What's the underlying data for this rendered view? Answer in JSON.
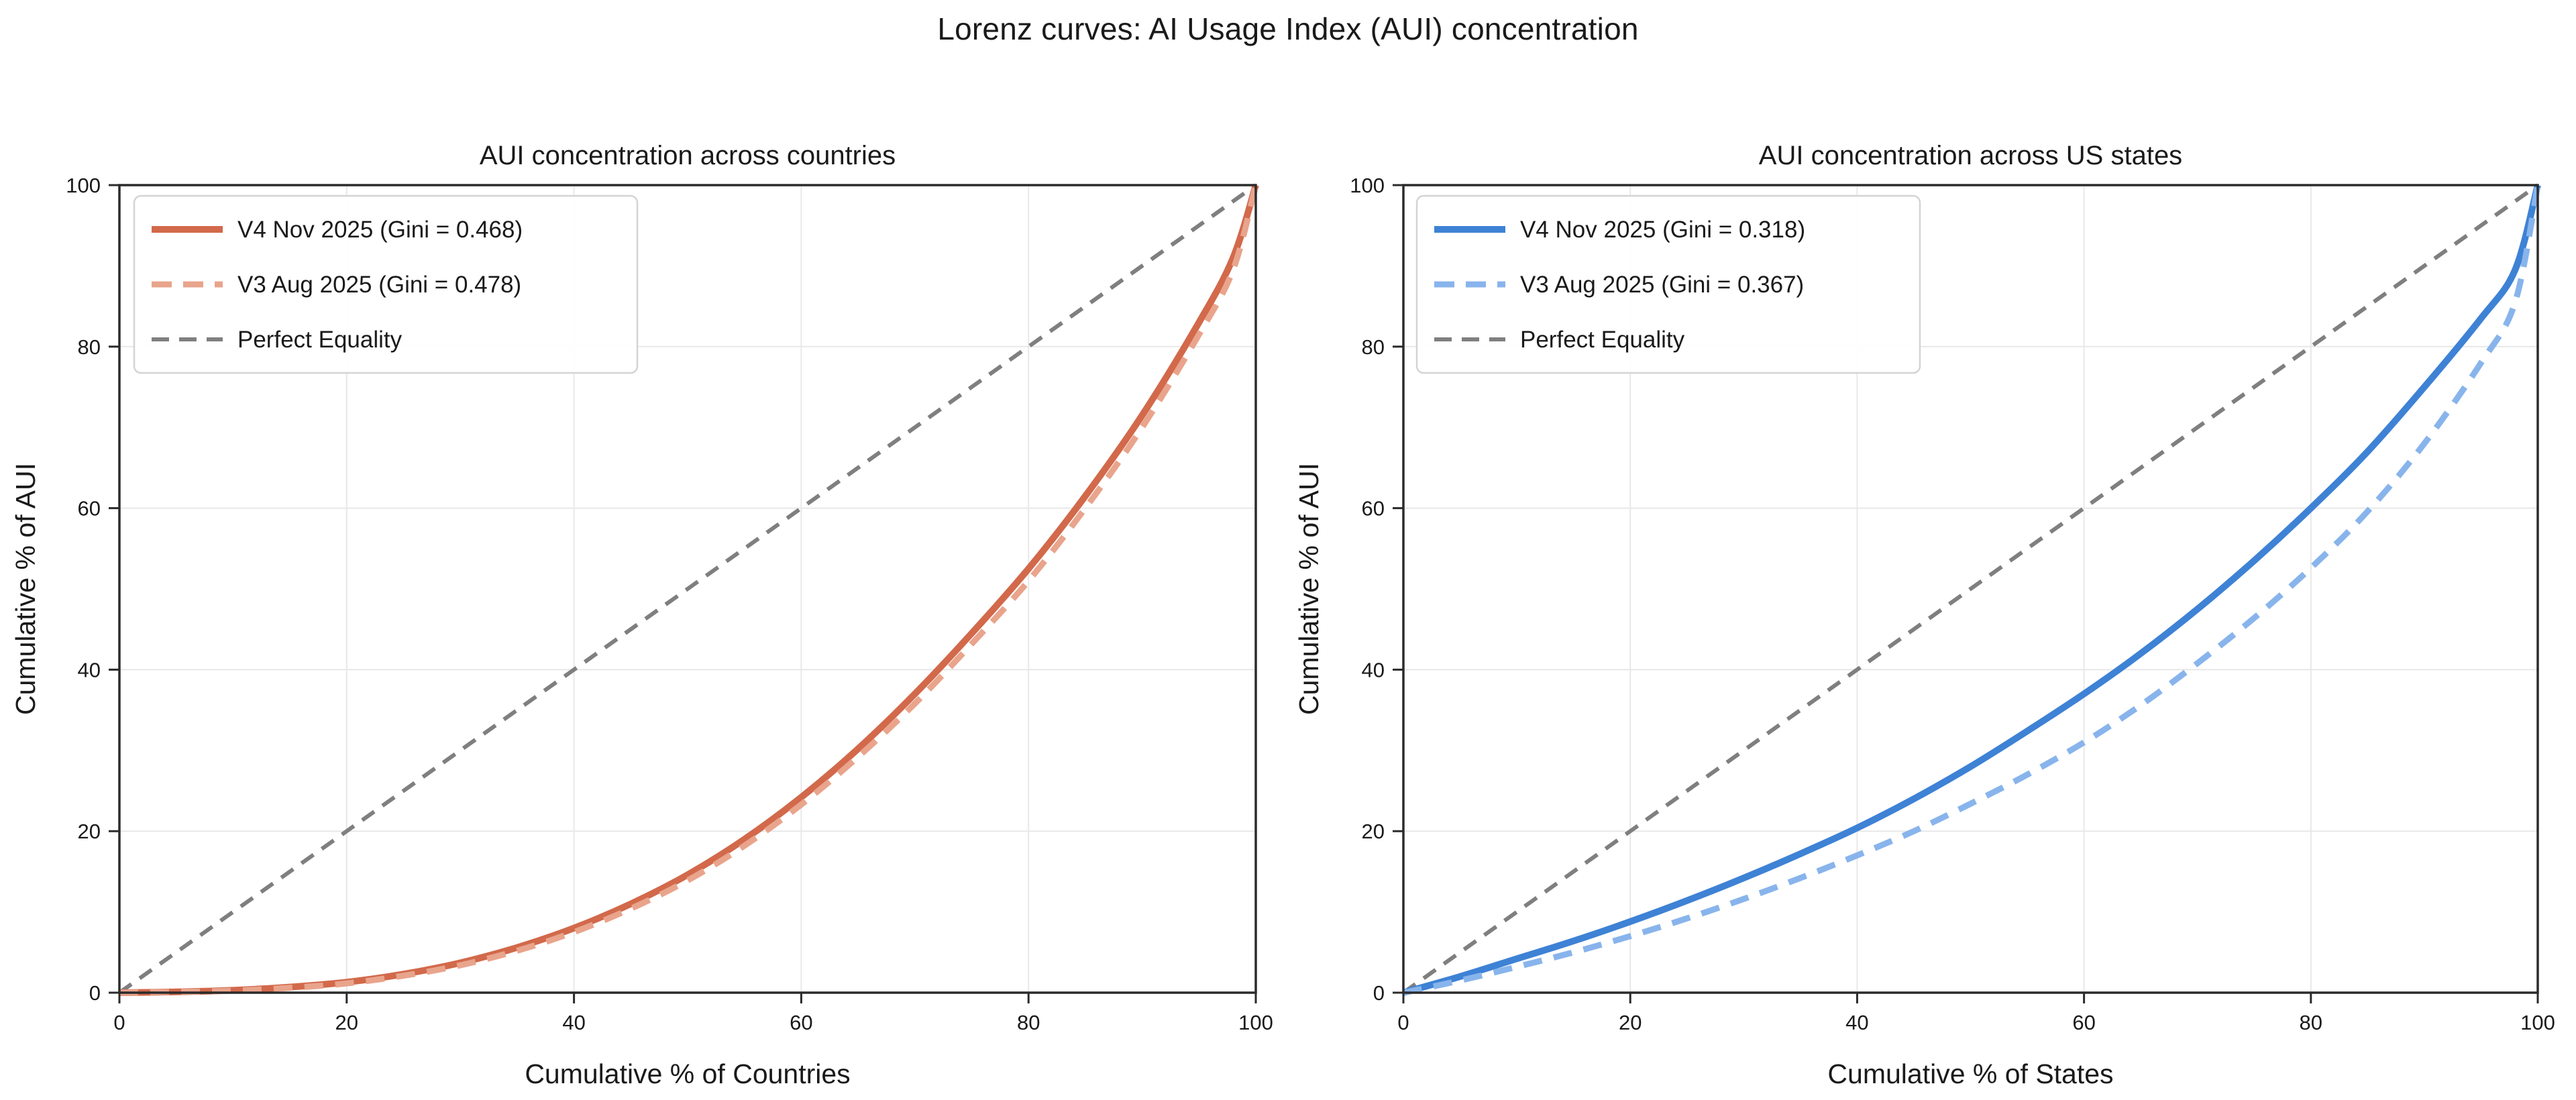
{
  "figure": {
    "title": "Lorenz curves: AI Usage Index (AUI) concentration",
    "background_color": "#ffffff",
    "text_color": "#1a1a1a",
    "spine_color": "#2b2b2b",
    "grid_color": "#e8e8e8",
    "legend_border_color": "#d4d4d4",
    "legend_background_color": "#ffffff"
  },
  "chart_data": [
    {
      "type": "line",
      "title": "AUI concentration across countries",
      "xlabel": "Cumulative % of Countries",
      "ylabel": "Cumulative % of AUI",
      "xlim": [
        0,
        100
      ],
      "ylim": [
        0,
        100
      ],
      "xticks": [
        0,
        20,
        40,
        60,
        80,
        100
      ],
      "yticks": [
        0,
        20,
        40,
        60,
        80,
        100
      ],
      "grid": true,
      "legend_position": "upper left",
      "series": [
        {
          "name": "V4 Nov 2025 (Gini = 0.468)",
          "gini": 0.468,
          "color": "#D2694B",
          "style": "solid",
          "points": [
            [
              0,
              0
            ],
            [
              5,
              0.1
            ],
            [
              10,
              0.3
            ],
            [
              15,
              0.7
            ],
            [
              20,
              1.3
            ],
            [
              25,
              2.3
            ],
            [
              30,
              3.7
            ],
            [
              35,
              5.6
            ],
            [
              40,
              8.0
            ],
            [
              45,
              11.0
            ],
            [
              50,
              14.6
            ],
            [
              55,
              19.0
            ],
            [
              60,
              24.2
            ],
            [
              65,
              30.2
            ],
            [
              70,
              37.0
            ],
            [
              75,
              44.5
            ],
            [
              80,
              52.5
            ],
            [
              85,
              61.5
            ],
            [
              90,
              71.5
            ],
            [
              95,
              83.0
            ],
            [
              98,
              91.0
            ],
            [
              100,
              100
            ]
          ]
        },
        {
          "name": "V3 Aug 2025 (Gini = 0.478)",
          "gini": 0.478,
          "color": "#E9A48C",
          "style": "dashed",
          "points": [
            [
              0,
              0
            ],
            [
              5,
              0.1
            ],
            [
              10,
              0.25
            ],
            [
              15,
              0.6
            ],
            [
              20,
              1.15
            ],
            [
              25,
              2.1
            ],
            [
              30,
              3.4
            ],
            [
              35,
              5.2
            ],
            [
              40,
              7.5
            ],
            [
              45,
              10.4
            ],
            [
              50,
              13.9
            ],
            [
              55,
              18.2
            ],
            [
              60,
              23.3
            ],
            [
              65,
              29.2
            ],
            [
              70,
              35.8
            ],
            [
              75,
              43.2
            ],
            [
              80,
              51.0
            ],
            [
              85,
              60.0
            ],
            [
              90,
              70.0
            ],
            [
              95,
              81.5
            ],
            [
              98,
              89.5
            ],
            [
              100,
              100
            ]
          ]
        },
        {
          "name": "Perfect Equality",
          "color": "#7f7f7f",
          "style": "dashed-reference",
          "points": [
            [
              0,
              0
            ],
            [
              100,
              100
            ]
          ]
        }
      ]
    },
    {
      "type": "line",
      "title": "AUI concentration across US states",
      "xlabel": "Cumulative % of States",
      "ylabel": "Cumulative % of AUI",
      "xlim": [
        0,
        100
      ],
      "ylim": [
        0,
        100
      ],
      "xticks": [
        0,
        20,
        40,
        60,
        80,
        100
      ],
      "yticks": [
        0,
        20,
        40,
        60,
        80,
        100
      ],
      "grid": true,
      "legend_position": "upper left",
      "series": [
        {
          "name": "V4 Nov 2025 (Gini = 0.318)",
          "gini": 0.318,
          "color": "#3E82D5",
          "style": "solid",
          "points": [
            [
              0,
              0
            ],
            [
              5,
              2.0
            ],
            [
              10,
              4.2
            ],
            [
              15,
              6.4
            ],
            [
              20,
              8.8
            ],
            [
              25,
              11.4
            ],
            [
              30,
              14.2
            ],
            [
              35,
              17.2
            ],
            [
              40,
              20.4
            ],
            [
              45,
              24.0
            ],
            [
              50,
              28.0
            ],
            [
              55,
              32.4
            ],
            [
              60,
              37.0
            ],
            [
              65,
              42.0
            ],
            [
              70,
              47.5
            ],
            [
              75,
              53.5
            ],
            [
              80,
              60.0
            ],
            [
              85,
              67.0
            ],
            [
              90,
              75.0
            ],
            [
              95,
              83.5
            ],
            [
              98,
              89.5
            ],
            [
              100,
              100
            ]
          ]
        },
        {
          "name": "V3 Aug 2025 (Gini = 0.367)",
          "gini": 0.367,
          "color": "#88B4EC",
          "style": "dashed",
          "points": [
            [
              0,
              0
            ],
            [
              5,
              1.5
            ],
            [
              10,
              3.2
            ],
            [
              15,
              5.0
            ],
            [
              20,
              7.0
            ],
            [
              25,
              9.2
            ],
            [
              30,
              11.6
            ],
            [
              35,
              14.2
            ],
            [
              40,
              17.0
            ],
            [
              45,
              20.0
            ],
            [
              50,
              23.4
            ],
            [
              55,
              27.0
            ],
            [
              60,
              31.0
            ],
            [
              65,
              35.6
            ],
            [
              70,
              40.8
            ],
            [
              75,
              46.4
            ],
            [
              80,
              52.6
            ],
            [
              85,
              59.6
            ],
            [
              90,
              68.0
            ],
            [
              95,
              78.0
            ],
            [
              98,
              85.5
            ],
            [
              100,
              100
            ]
          ]
        },
        {
          "name": "Perfect Equality",
          "color": "#7f7f7f",
          "style": "dashed-reference",
          "points": [
            [
              0,
              0
            ],
            [
              100,
              100
            ]
          ]
        }
      ]
    }
  ]
}
